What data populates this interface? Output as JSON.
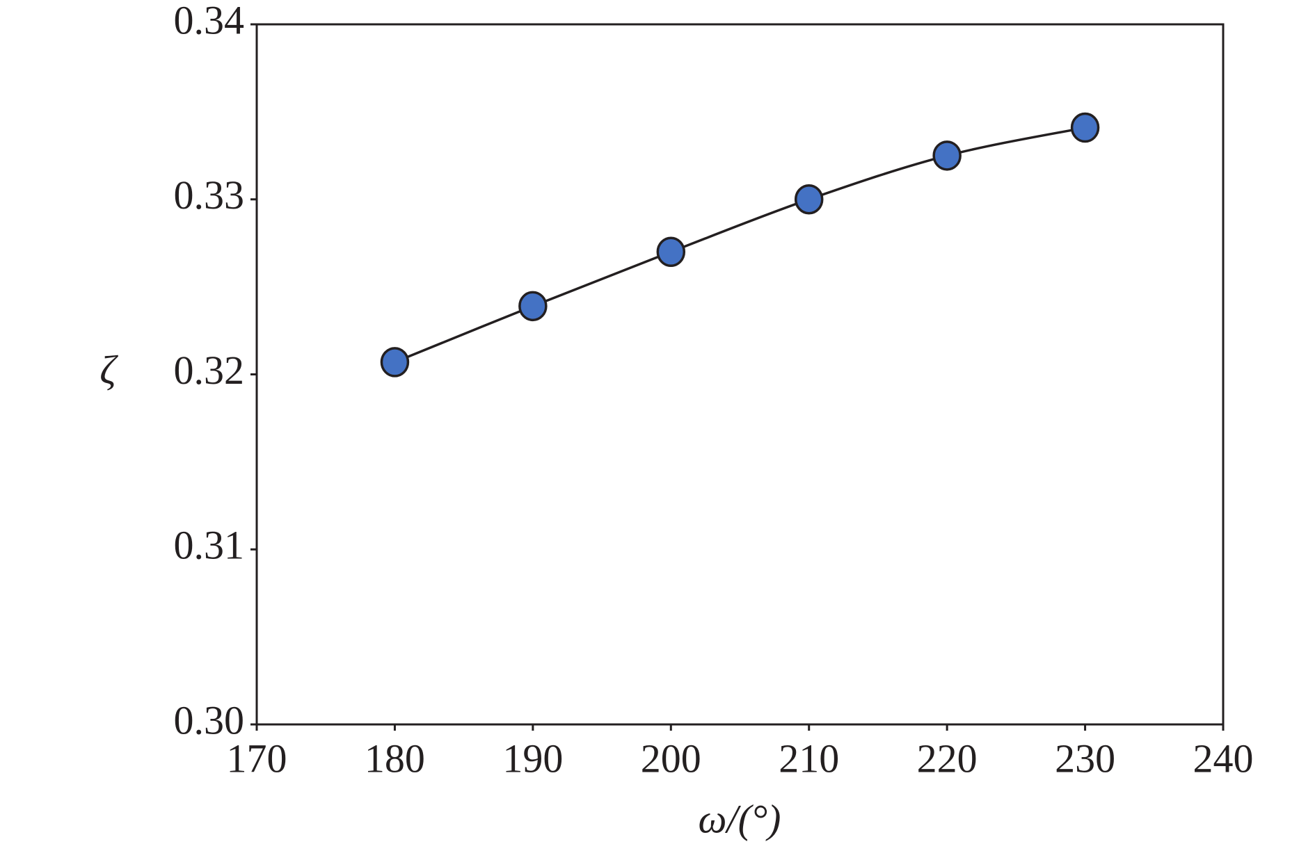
{
  "chart_data": {
    "type": "line",
    "x_label": "ω/(°)",
    "y_label": "ζ",
    "x": [
      180,
      190,
      200,
      210,
      220,
      230
    ],
    "series": [
      {
        "color": "#4472c4",
        "values": [
          0.3207,
          0.3239,
          0.327,
          0.33,
          0.3325,
          0.3341
        ]
      }
    ],
    "xlim": [
      170,
      240
    ],
    "xticks": [
      170,
      180,
      190,
      200,
      210,
      220,
      230,
      240
    ],
    "ylim": [
      0.3,
      0.34
    ],
    "yticks": [
      {
        "value": 0.3,
        "label": "0.30"
      },
      0.31,
      0.32,
      0.33,
      0.34
    ],
    "grid": false
  }
}
